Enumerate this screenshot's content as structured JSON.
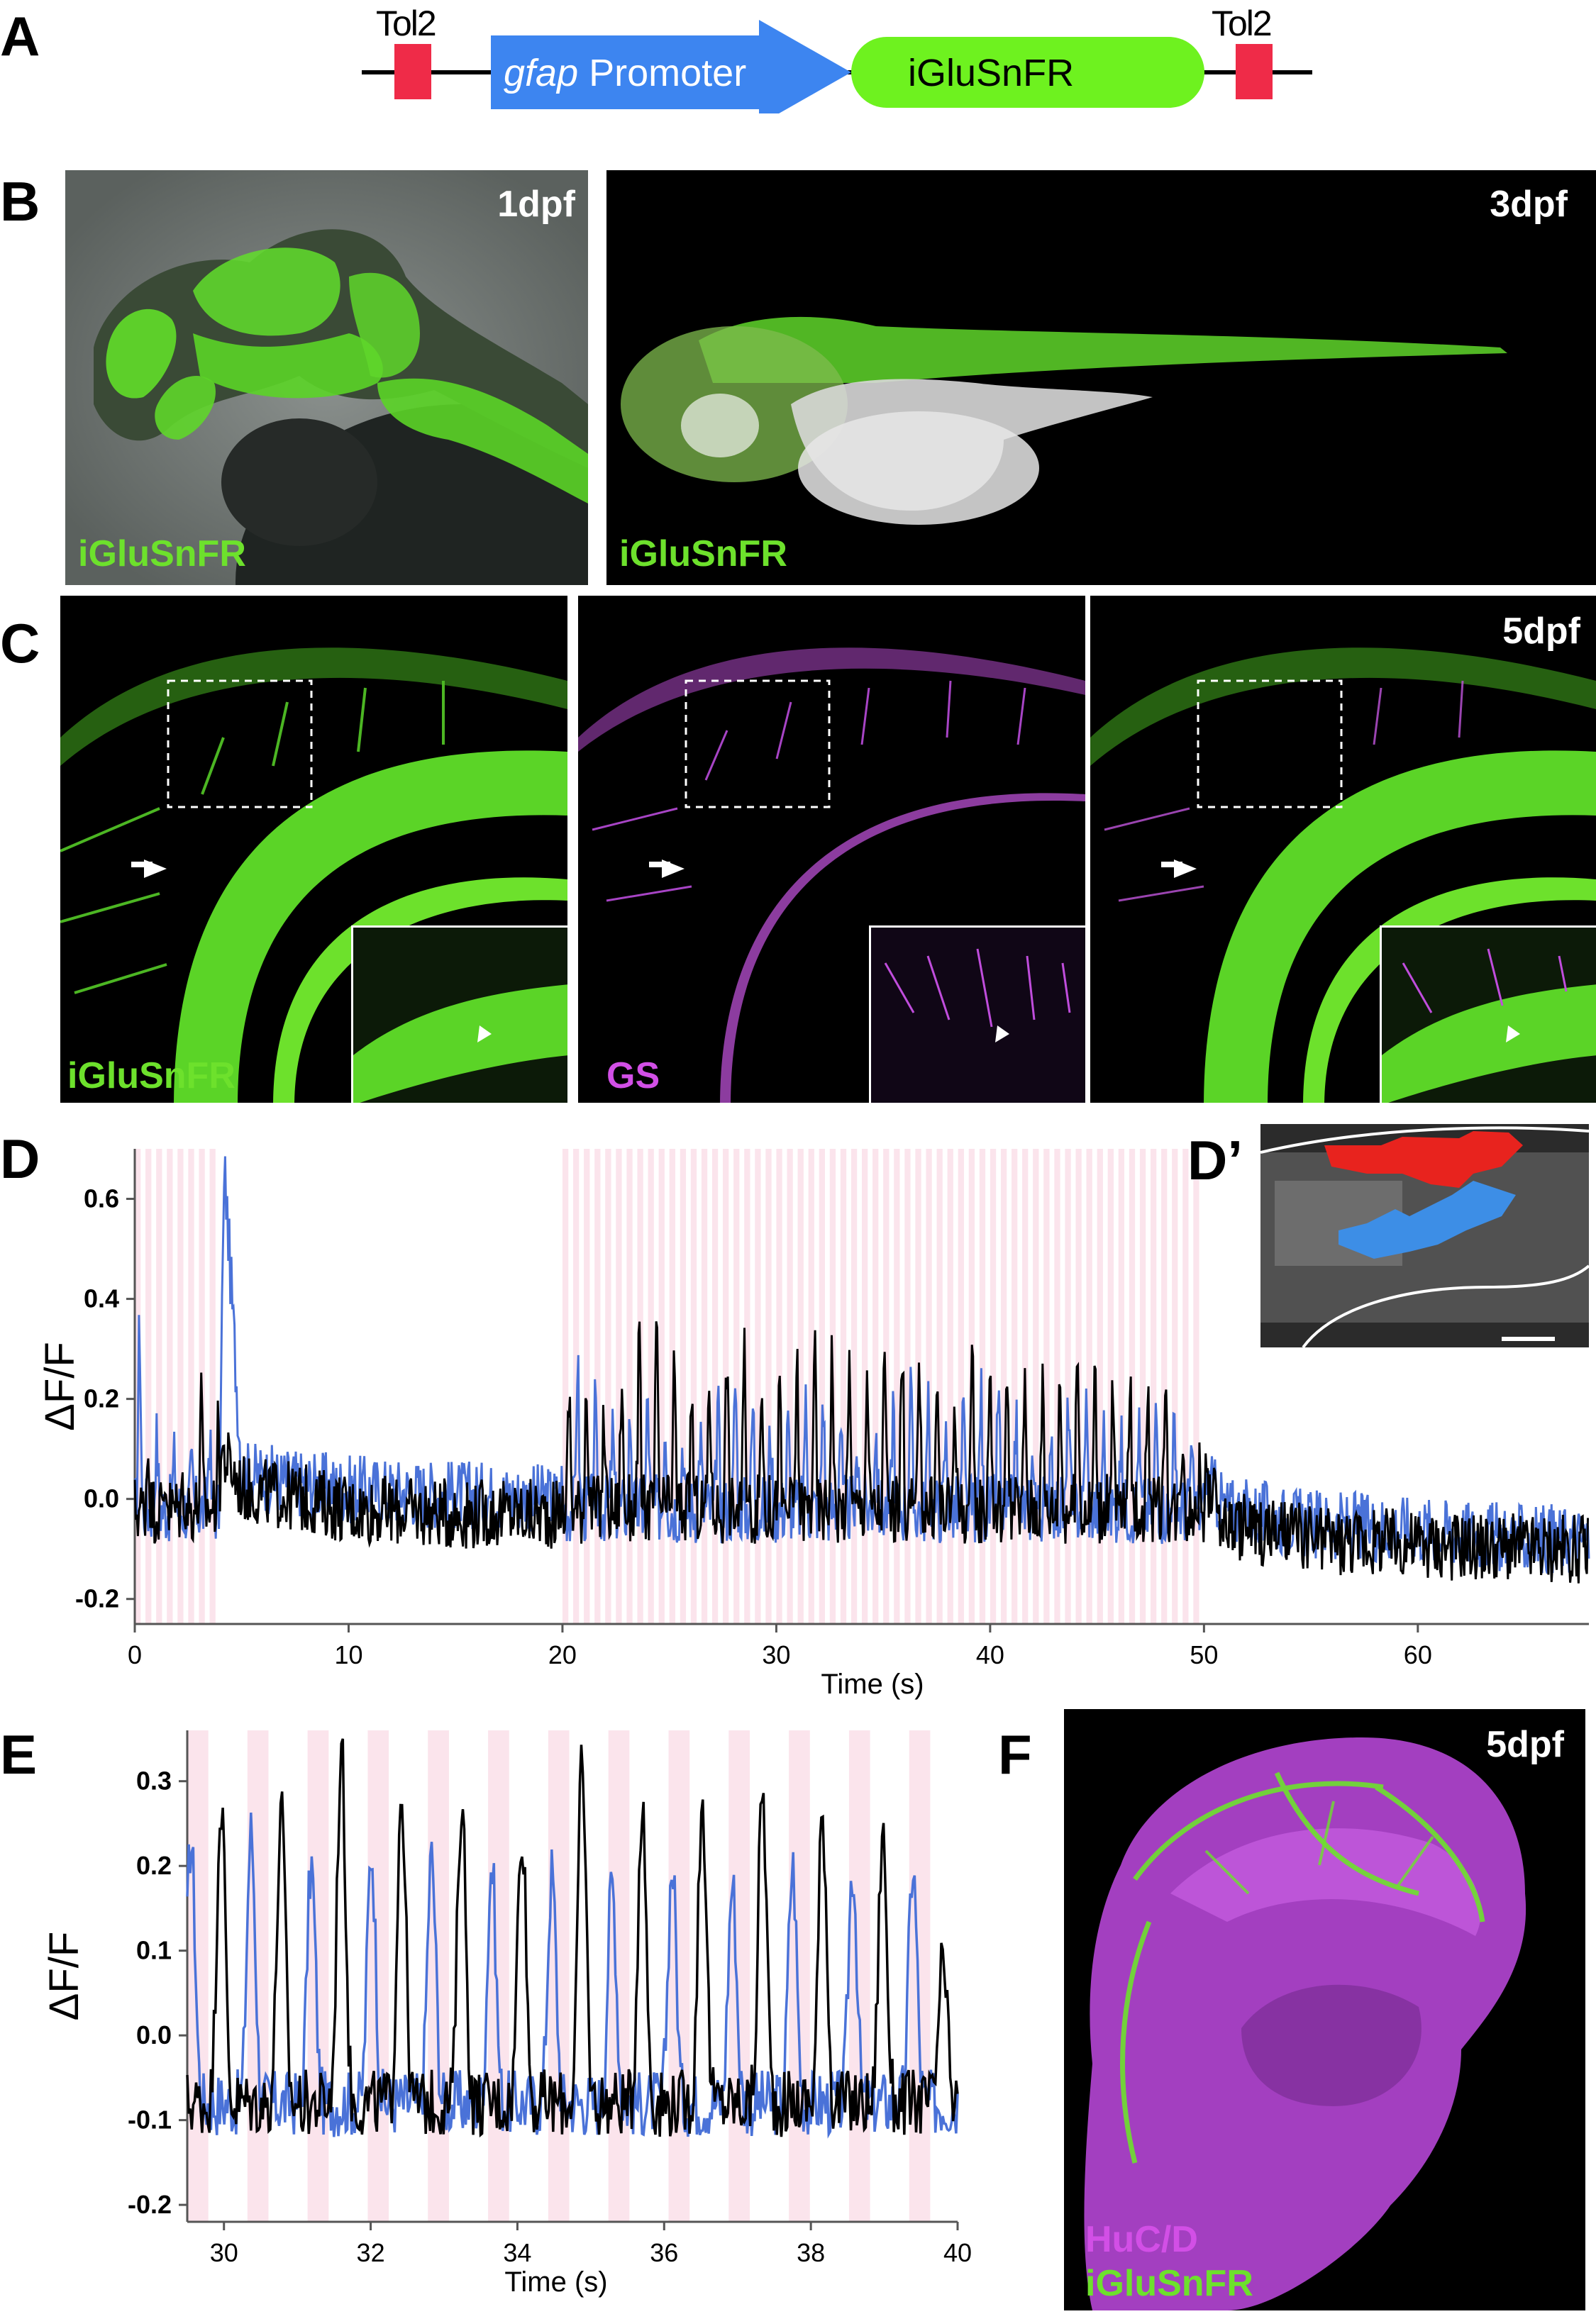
{
  "panels": {
    "A": "A",
    "B": "B",
    "C": "C",
    "D": "D",
    "Dprime": "D’",
    "E": "E",
    "F": "F"
  },
  "construct": {
    "tol2_left": "Tol2",
    "promoter_italic": "gfap",
    "promoter_rest": " Promoter",
    "reporter": "iGluSnFR",
    "tol2_right": "Tol2",
    "colors": {
      "tol2": "#ef2b48",
      "promoter": "#3d85f0",
      "reporter": "#6ef21f"
    }
  },
  "panelB": {
    "left": {
      "stage": "1dpf",
      "channel": "iGluSnFR"
    },
    "right": {
      "stage": "3dpf",
      "channel": "iGluSnFR"
    }
  },
  "panelC": {
    "stage": "5dpf",
    "channels": [
      "iGluSnFR",
      "GS",
      ""
    ]
  },
  "panelF": {
    "stage": "5dpf",
    "channel1": "HuC/D",
    "channel2": "iGluSnFR"
  },
  "colors": {
    "green": "#6de12c",
    "magenta": "#d24fe6",
    "trace_blue": "#4a72d8",
    "trace_black": "#000000",
    "stim_pink": "#fbe4ec",
    "roi_red": "#e8231e",
    "roi_blue": "#3d8ee6"
  },
  "chart_data": [
    {
      "id": "D",
      "type": "line",
      "xlabel": "Time (s)",
      "ylabel": "ΔF/F",
      "xlim": [
        0,
        68
      ],
      "ylim": [
        -0.25,
        0.7
      ],
      "xticks": [
        0,
        10,
        20,
        30,
        40,
        50,
        60
      ],
      "yticks": [
        -0.2,
        0.0,
        0.2,
        0.4,
        0.6
      ],
      "stimulus_periods": [
        [
          0,
          4
        ],
        [
          20,
          50
        ]
      ],
      "series": [
        {
          "name": "",
          "color": "#4a72d8",
          "x": [
            0,
            0.3,
            1,
            2,
            3,
            4,
            4.2,
            5,
            8,
            10,
            15,
            19.9,
            20.5,
            22,
            24,
            26,
            28,
            30,
            32,
            34,
            36,
            38,
            40,
            42,
            44,
            46,
            48,
            49.9,
            51,
            55,
            60,
            65,
            68
          ],
          "values": [
            0.05,
            0.46,
            0.12,
            0.07,
            0.05,
            0.2,
            0.66,
            0.05,
            0.03,
            0.02,
            0.01,
            0.0,
            0.3,
            0.12,
            0.2,
            0.1,
            0.24,
            0.12,
            0.22,
            0.1,
            0.23,
            0.12,
            0.24,
            0.1,
            0.22,
            0.1,
            0.18,
            0.05,
            -0.02,
            -0.05,
            -0.06,
            -0.08,
            -0.08
          ]
        },
        {
          "name": "",
          "color": "#000000",
          "x": [
            0,
            0.3,
            1,
            2,
            3,
            3.2,
            4,
            5,
            8,
            10,
            15,
            19.9,
            20.5,
            22,
            24,
            26,
            28,
            30,
            32,
            34,
            36,
            38,
            40,
            42,
            44,
            46,
            48,
            49.9,
            51,
            55,
            60,
            65,
            68
          ],
          "values": [
            0.0,
            0.14,
            0.06,
            0.02,
            0.05,
            0.34,
            0.1,
            0.02,
            0.0,
            -0.02,
            -0.03,
            -0.03,
            0.32,
            0.15,
            0.35,
            0.2,
            0.3,
            0.2,
            0.32,
            0.25,
            0.3,
            0.2,
            0.29,
            0.2,
            0.29,
            0.2,
            0.25,
            0.05,
            -0.05,
            -0.08,
            -0.09,
            -0.1,
            -0.1
          ]
        }
      ]
    },
    {
      "id": "E",
      "type": "line",
      "xlabel": "Time (s)",
      "ylabel": "ΔF/F",
      "xlim": [
        29.5,
        40
      ],
      "ylim": [
        -0.22,
        0.36
      ],
      "xticks": [
        30,
        32,
        34,
        36,
        38,
        40
      ],
      "yticks": [
        -0.2,
        -0.1,
        0.0,
        0.1,
        0.2,
        0.3
      ],
      "stim_period_s": 0.82,
      "series": [
        {
          "name": "",
          "color": "#4a72d8",
          "x": [
            29.55,
            30.37,
            31.19,
            32.01,
            32.83,
            33.65,
            34.47,
            35.29,
            36.11,
            36.93,
            37.75,
            38.57,
            39.39
          ],
          "values": [
            0.23,
            0.24,
            0.2,
            0.22,
            0.21,
            0.2,
            0.19,
            0.18,
            0.2,
            0.18,
            0.2,
            0.2,
            0.2
          ]
        },
        {
          "name": "",
          "color": "#000000",
          "x": [
            29.96,
            30.78,
            31.6,
            32.42,
            33.24,
            34.06,
            34.88,
            35.7,
            36.52,
            37.34,
            38.16,
            38.98,
            39.8
          ],
          "values": [
            0.28,
            0.26,
            0.34,
            0.29,
            0.28,
            0.25,
            0.31,
            0.27,
            0.28,
            0.29,
            0.26,
            0.24,
            0.08
          ]
        }
      ]
    }
  ]
}
